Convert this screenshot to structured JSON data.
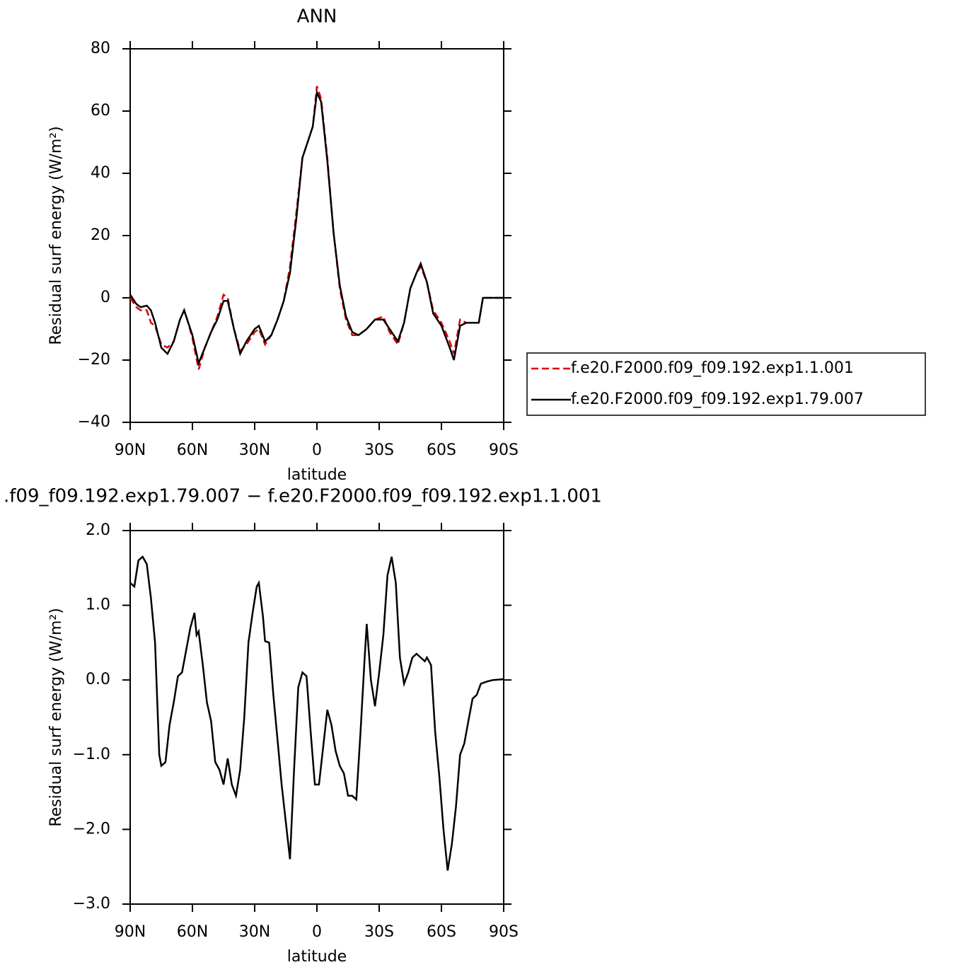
{
  "chart_data": [
    {
      "type": "line",
      "title": "ANN",
      "xlabel": "latitude",
      "ylabel": "Residual surf energy (W/m²)",
      "xlim": [
        90,
        -90
      ],
      "ylim": [
        -40,
        80
      ],
      "xticks": [
        {
          "value": 90,
          "label": "90N"
        },
        {
          "value": 60,
          "label": "60N"
        },
        {
          "value": 30,
          "label": "30N"
        },
        0,
        {
          "value": -30,
          "label": "30S"
        },
        {
          "value": -60,
          "label": "60S"
        },
        {
          "value": -90,
          "label": "90S"
        }
      ],
      "yticks": [
        {
          "value": -40,
          "label": "−40"
        },
        {
          "value": -20,
          "label": "−20"
        },
        0,
        20,
        40,
        60,
        80
      ],
      "legend": "right",
      "x": [
        90,
        87,
        85,
        82,
        80,
        78,
        75,
        72,
        69,
        66,
        64,
        62,
        60,
        57,
        54,
        51,
        48,
        45,
        43,
        40,
        37,
        34,
        30,
        28,
        25,
        22,
        19,
        16,
        13,
        10,
        7,
        4,
        2,
        0,
        -2,
        -5,
        -8,
        -11,
        -14,
        -17,
        -20,
        -24,
        -28,
        -32,
        -35,
        -39,
        -42,
        -45,
        -48,
        -50,
        -53,
        -56,
        -60,
        -64,
        -66,
        -69,
        -72,
        -75,
        -78,
        -80,
        -85,
        -90
      ],
      "series": [
        {
          "name": "f.e20.F2000.f09_f09.192.exp1.1.001",
          "color": "#e00000",
          "line_style": "dashed",
          "values": [
            0,
            -3,
            -4,
            -4,
            -8,
            -9,
            -15,
            -16,
            -14,
            -7,
            -4,
            -8,
            -13,
            -23,
            -16,
            -11,
            -6,
            1,
            0,
            -10,
            -17,
            -15,
            -11,
            -10,
            -15,
            -12,
            -7,
            -1,
            10,
            27,
            45,
            51,
            55,
            68,
            64,
            45,
            21,
            3,
            -7,
            -12,
            -12,
            -10,
            -7,
            -6,
            -11,
            -15,
            -8,
            3,
            8,
            10,
            5,
            -4,
            -8,
            -14,
            -18,
            -7,
            -8,
            -8,
            -8,
            0,
            0,
            0
          ]
        },
        {
          "name": "f.e20.F2000.f09_f09.192.exp1.79.007",
          "color": "#000000",
          "line_style": "solid",
          "values": [
            1,
            -2,
            -3,
            -2.5,
            -4,
            -8,
            -16,
            -18,
            -14,
            -7,
            -4,
            -8,
            -12,
            -21,
            -16,
            -11,
            -7,
            -1,
            -1,
            -10,
            -18,
            -14,
            -10,
            -9,
            -14,
            -12,
            -7,
            -1,
            8,
            25,
            45,
            51,
            55,
            66,
            63,
            44,
            21,
            4,
            -6,
            -11,
            -12,
            -10,
            -7,
            -7,
            -10,
            -14,
            -8,
            3,
            8,
            11,
            5,
            -5,
            -9,
            -16,
            -20,
            -9,
            -8,
            -8,
            -8,
            0,
            0,
            0
          ]
        }
      ]
    },
    {
      "type": "line",
      "title": ".f09_f09.192.exp1.79.007 − f.e20.F2000.f09_f09.192.exp1.1.001",
      "xlabel": "latitude",
      "ylabel": "Residual surf energy (W/m²)",
      "xlim": [
        90,
        -90
      ],
      "ylim": [
        -3,
        2
      ],
      "xticks": [
        {
          "value": 90,
          "label": "90N"
        },
        {
          "value": 60,
          "label": "60N"
        },
        {
          "value": 30,
          "label": "30N"
        },
        0,
        {
          "value": -30,
          "label": "30S"
        },
        {
          "value": -60,
          "label": "60S"
        },
        {
          "value": -90,
          "label": "90S"
        }
      ],
      "yticks": [
        {
          "value": -3,
          "label": "−3.0"
        },
        {
          "value": -2,
          "label": "−2.0"
        },
        {
          "value": -1,
          "label": "−1.0"
        },
        {
          "value": 0,
          "label": "0.0"
        },
        {
          "value": 1,
          "label": "1.0"
        },
        {
          "value": 2,
          "label": "2.0"
        }
      ],
      "x": [
        90,
        88,
        86,
        84,
        82,
        80,
        78,
        76,
        75,
        73,
        71,
        69,
        67,
        65,
        63,
        61,
        59,
        58,
        57,
        55,
        53,
        51,
        49,
        47,
        45,
        43,
        41,
        39,
        37,
        35,
        33,
        31,
        29,
        28,
        26,
        25,
        23,
        21,
        19,
        17,
        15,
        13,
        11,
        9,
        7,
        5,
        3,
        1,
        -1,
        -3,
        -5,
        -7,
        -9,
        -11,
        -13,
        -15,
        -17,
        -19,
        -21,
        -23,
        -24,
        -26,
        -28,
        -30,
        -32,
        -34,
        -36,
        -38,
        -40,
        -42,
        -44,
        -46,
        -48,
        -50,
        -52,
        -53,
        -55,
        -57,
        -59,
        -61,
        -63,
        -65,
        -67,
        -69,
        -71,
        -73,
        -75,
        -77,
        -79,
        -82,
        -85,
        -90
      ],
      "series": [
        {
          "color": "#000000",
          "values": [
            1.3,
            1.25,
            1.6,
            1.65,
            1.55,
            1.1,
            0.5,
            -1.0,
            -1.15,
            -1.1,
            -0.6,
            -0.3,
            0.05,
            0.1,
            0.4,
            0.7,
            0.9,
            0.6,
            0.65,
            0.2,
            -0.3,
            -0.55,
            -1.1,
            -1.2,
            -1.4,
            -1.05,
            -1.4,
            -1.55,
            -1.2,
            -0.5,
            0.5,
            0.9,
            1.25,
            1.3,
            0.85,
            0.52,
            0.5,
            -0.2,
            -0.8,
            -1.4,
            -1.9,
            -2.4,
            -1.2,
            -0.1,
            0.1,
            0.05,
            -0.7,
            -1.4,
            -1.4,
            -0.9,
            -0.4,
            -0.6,
            -0.95,
            -1.15,
            -1.25,
            -1.55,
            -1.55,
            -1.6,
            -0.7,
            0.3,
            0.75,
            0.0,
            -0.35,
            0.1,
            0.6,
            1.4,
            1.65,
            1.3,
            0.3,
            -0.05,
            0.1,
            0.3,
            0.35,
            0.3,
            0.25,
            0.3,
            0.2,
            -0.7,
            -1.3,
            -2.0,
            -2.55,
            -2.2,
            -1.7,
            -1.0,
            -0.85,
            -0.55,
            -0.25,
            -0.2,
            -0.05,
            -0.02,
            0.0,
            0.01
          ]
        }
      ]
    }
  ]
}
